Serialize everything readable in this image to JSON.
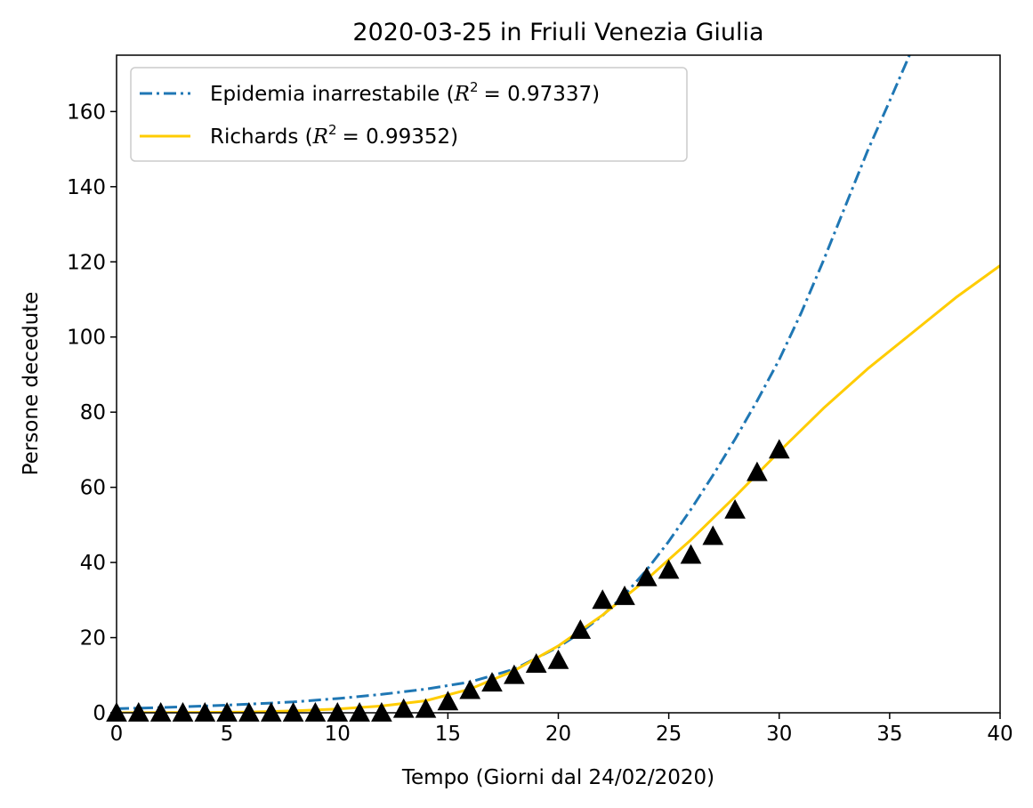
{
  "chart_data": {
    "type": "line",
    "title": "2020-03-25 in Friuli Venezia Giulia",
    "xlabel": "Tempo (Giorni dal 24/02/2020)",
    "ylabel": "Persone decedute",
    "xlim": [
      0,
      40
    ],
    "ylim": [
      0,
      175
    ],
    "xticks": [
      0,
      5,
      10,
      15,
      20,
      25,
      30,
      35,
      40
    ],
    "yticks": [
      0,
      20,
      40,
      60,
      80,
      100,
      120,
      140,
      160
    ],
    "grid": false,
    "legend_position": "top-left",
    "series": [
      {
        "name": "Epidemia inarrestabile",
        "name_prefix": "Epidemia inarrestabile (",
        "r2_value": "= 0.97337)",
        "style": "dashdot",
        "color": "#1f77b4",
        "x": [
          0,
          2,
          4,
          6,
          8,
          10,
          12,
          14,
          16,
          18,
          20,
          21,
          22,
          23,
          24,
          25,
          26,
          27,
          28,
          29,
          30,
          31,
          32,
          33,
          34,
          35,
          35.9
        ],
        "y": [
          1.1,
          1.4,
          1.8,
          2.3,
          2.9,
          3.8,
          4.9,
          6.3,
          8.2,
          11.6,
          17.5,
          21.3,
          25.9,
          31.4,
          38.0,
          45.6,
          54.1,
          63.2,
          72.8,
          83.0,
          94.0,
          106.5,
          120.3,
          134.9,
          149.5,
          162.8,
          175
        ]
      },
      {
        "name": "Richards",
        "name_prefix": "Richards (",
        "r2_value": "= 0.99352)",
        "style": "solid",
        "color": "#ffcc00",
        "x": [
          0,
          2,
          4,
          6,
          8,
          10,
          12,
          14,
          16,
          18,
          20,
          22,
          24,
          26,
          28,
          30,
          32,
          34,
          36,
          38,
          40
        ],
        "y": [
          0.0,
          0.05,
          0.1,
          0.2,
          0.5,
          1.0,
          1.8,
          3.2,
          6.3,
          11.2,
          17.8,
          26.0,
          35.5,
          46.0,
          57.5,
          69.5,
          81.0,
          91.5,
          101.0,
          110.5,
          119.0
        ]
      }
    ],
    "observations": {
      "marker": "triangle",
      "color": "#000000",
      "x": [
        0,
        1,
        2,
        3,
        4,
        5,
        6,
        7,
        8,
        9,
        10,
        11,
        12,
        13,
        14,
        15,
        16,
        17,
        18,
        19,
        20,
        21,
        22,
        23,
        24,
        25,
        26,
        27,
        28,
        29,
        30
      ],
      "y": [
        0,
        0,
        0,
        0,
        0,
        0,
        0,
        0,
        0,
        0,
        0,
        0,
        0,
        1,
        1,
        3,
        6,
        8,
        10,
        13,
        14,
        22,
        30,
        31,
        36,
        38,
        42,
        47,
        54,
        64,
        70
      ]
    },
    "r2_symbol": "R",
    "r2_exponent": "2"
  }
}
